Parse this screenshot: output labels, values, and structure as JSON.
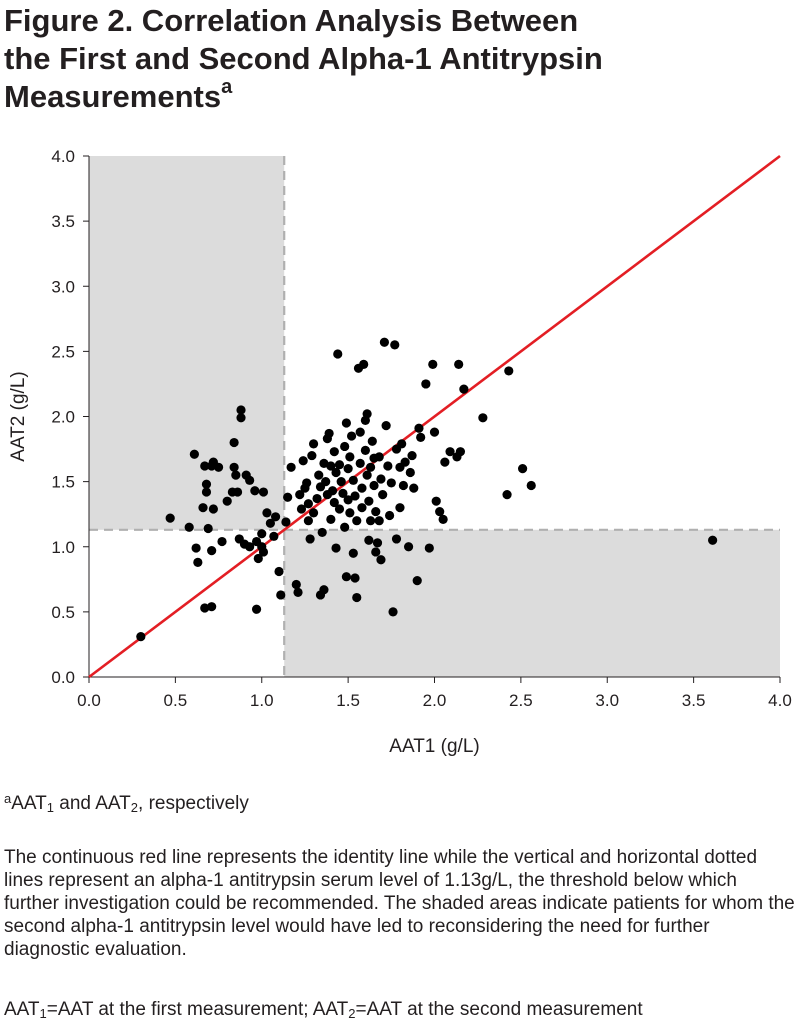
{
  "title": {
    "line1": "Figure 2. Correlation Analysis Between",
    "line2": "the First and Second Alpha-1 Antitrypsin",
    "line3": "Measurements",
    "sup": "a"
  },
  "chart_data": {
    "type": "scatter",
    "xlabel": "AAT1 (g/L)",
    "ylabel": "AAT2 (g/L)",
    "xlim": [
      0,
      4.0
    ],
    "ylim": [
      0,
      4.0
    ],
    "x_ticks": [
      "0.0",
      "0.5",
      "1.0",
      "1.5",
      "2.0",
      "2.5",
      "3.0",
      "3.5",
      "4.0"
    ],
    "y_ticks": [
      "0.0",
      "0.5",
      "1.0",
      "1.5",
      "2.0",
      "2.5",
      "3.0",
      "3.5",
      "4.0"
    ],
    "threshold": 1.13,
    "identity_line": [
      [
        0,
        0
      ],
      [
        4.0,
        4.0
      ]
    ],
    "shaded_regions": [
      {
        "x": [
          0,
          1.13
        ],
        "y": [
          1.13,
          4.0
        ]
      },
      {
        "x": [
          1.13,
          4.0
        ],
        "y": [
          0,
          1.13
        ]
      }
    ],
    "colors": {
      "identity_line": "#e31e24",
      "shade": "#dcdcdc",
      "threshold_line": "#b0b0b0",
      "points": "#000000"
    },
    "grid": false,
    "points": [
      [
        0.3,
        0.31
      ],
      [
        0.47,
        1.22
      ],
      [
        0.58,
        1.15
      ],
      [
        0.61,
        1.71
      ],
      [
        0.62,
        0.99
      ],
      [
        0.63,
        0.88
      ],
      [
        0.66,
        1.3
      ],
      [
        0.67,
        1.62
      ],
      [
        0.68,
        1.48
      ],
      [
        0.68,
        1.42
      ],
      [
        0.67,
        0.53
      ],
      [
        0.69,
        1.14
      ],
      [
        0.71,
        1.62
      ],
      [
        0.72,
        1.29
      ],
      [
        0.71,
        0.54
      ],
      [
        0.71,
        0.97
      ],
      [
        0.72,
        1.65
      ],
      [
        0.75,
        1.61
      ],
      [
        0.77,
        1.04
      ],
      [
        0.8,
        1.35
      ],
      [
        0.84,
        1.61
      ],
      [
        0.83,
        1.42
      ],
      [
        0.84,
        1.8
      ],
      [
        0.85,
        1.55
      ],
      [
        0.86,
        1.42
      ],
      [
        0.87,
        1.06
      ],
      [
        0.88,
        2.05
      ],
      [
        0.88,
        1.99
      ],
      [
        0.9,
        1.02
      ],
      [
        0.91,
        1.55
      ],
      [
        0.93,
        1.51
      ],
      [
        0.93,
        1.0
      ],
      [
        0.96,
        1.43
      ],
      [
        0.97,
        1.04
      ],
      [
        0.97,
        0.52
      ],
      [
        0.98,
        0.91
      ],
      [
        1.0,
        1.0
      ],
      [
        1.01,
        1.42
      ],
      [
        1.0,
        1.1
      ],
      [
        1.01,
        0.96
      ],
      [
        1.03,
        1.26
      ],
      [
        1.05,
        1.18
      ],
      [
        1.07,
        1.08
      ],
      [
        1.08,
        1.23
      ],
      [
        1.1,
        0.81
      ],
      [
        1.11,
        0.63
      ],
      [
        1.14,
        1.19
      ],
      [
        1.15,
        1.38
      ],
      [
        1.17,
        1.61
      ],
      [
        1.2,
        0.71
      ],
      [
        1.21,
        0.65
      ],
      [
        1.22,
        1.4
      ],
      [
        1.23,
        1.29
      ],
      [
        1.25,
        1.45
      ],
      [
        1.24,
        1.66
      ],
      [
        1.26,
        1.49
      ],
      [
        1.27,
        1.33
      ],
      [
        1.27,
        1.2
      ],
      [
        1.28,
        1.06
      ],
      [
        1.29,
        1.7
      ],
      [
        1.3,
        1.79
      ],
      [
        1.3,
        1.26
      ],
      [
        1.32,
        1.37
      ],
      [
        1.33,
        1.55
      ],
      [
        1.34,
        1.46
      ],
      [
        1.34,
        0.63
      ],
      [
        1.35,
        1.11
      ],
      [
        1.36,
        0.67
      ],
      [
        1.36,
        1.64
      ],
      [
        1.37,
        1.5
      ],
      [
        1.38,
        1.83
      ],
      [
        1.38,
        1.4
      ],
      [
        1.39,
        1.87
      ],
      [
        1.4,
        1.21
      ],
      [
        1.4,
        1.62
      ],
      [
        1.41,
        1.43
      ],
      [
        1.42,
        1.34
      ],
      [
        1.42,
        1.73
      ],
      [
        1.43,
        1.57
      ],
      [
        1.43,
        0.99
      ],
      [
        1.44,
        2.48
      ],
      [
        1.45,
        1.29
      ],
      [
        1.45,
        1.63
      ],
      [
        1.46,
        1.5
      ],
      [
        1.47,
        1.41
      ],
      [
        1.48,
        1.77
      ],
      [
        1.48,
        1.15
      ],
      [
        1.49,
        0.77
      ],
      [
        1.49,
        1.95
      ],
      [
        1.5,
        1.6
      ],
      [
        1.5,
        1.36
      ],
      [
        1.51,
        1.26
      ],
      [
        1.51,
        1.69
      ],
      [
        1.52,
        1.85
      ],
      [
        1.53,
        0.95
      ],
      [
        1.53,
        1.51
      ],
      [
        1.54,
        1.39
      ],
      [
        1.54,
        0.76
      ],
      [
        1.55,
        1.2
      ],
      [
        1.55,
        0.61
      ],
      [
        1.56,
        2.37
      ],
      [
        1.57,
        1.88
      ],
      [
        1.57,
        1.64
      ],
      [
        1.58,
        1.45
      ],
      [
        1.58,
        1.3
      ],
      [
        1.59,
        2.4
      ],
      [
        1.6,
        1.97
      ],
      [
        1.6,
        1.74
      ],
      [
        1.61,
        2.02
      ],
      [
        1.61,
        1.55
      ],
      [
        1.62,
        1.35
      ],
      [
        1.62,
        1.05
      ],
      [
        1.63,
        1.61
      ],
      [
        1.63,
        1.2
      ],
      [
        1.64,
        1.81
      ],
      [
        1.65,
        1.68
      ],
      [
        1.65,
        1.47
      ],
      [
        1.66,
        1.27
      ],
      [
        1.66,
        0.96
      ],
      [
        1.67,
        1.03
      ],
      [
        1.68,
        1.69
      ],
      [
        1.68,
        1.2
      ],
      [
        1.69,
        1.52
      ],
      [
        1.69,
        0.9
      ],
      [
        1.7,
        1.4
      ],
      [
        1.71,
        2.57
      ],
      [
        1.72,
        1.93
      ],
      [
        1.73,
        1.62
      ],
      [
        1.74,
        1.24
      ],
      [
        1.75,
        1.49
      ],
      [
        1.76,
        0.5
      ],
      [
        1.77,
        2.55
      ],
      [
        1.78,
        1.75
      ],
      [
        1.78,
        1.06
      ],
      [
        1.8,
        1.61
      ],
      [
        1.8,
        1.3
      ],
      [
        1.81,
        1.79
      ],
      [
        1.82,
        1.47
      ],
      [
        1.83,
        1.65
      ],
      [
        1.85,
        1.0
      ],
      [
        1.86,
        1.57
      ],
      [
        1.87,
        1.7
      ],
      [
        1.88,
        1.45
      ],
      [
        1.9,
        0.74
      ],
      [
        1.91,
        1.91
      ],
      [
        1.92,
        1.84
      ],
      [
        1.95,
        2.25
      ],
      [
        1.97,
        0.99
      ],
      [
        1.99,
        2.4
      ],
      [
        2.0,
        1.88
      ],
      [
        2.01,
        1.35
      ],
      [
        2.03,
        1.27
      ],
      [
        2.05,
        1.21
      ],
      [
        2.06,
        1.65
      ],
      [
        2.09,
        1.73
      ],
      [
        2.13,
        1.69
      ],
      [
        2.14,
        2.4
      ],
      [
        2.15,
        1.73
      ],
      [
        2.17,
        2.21
      ],
      [
        2.28,
        1.99
      ],
      [
        2.42,
        1.4
      ],
      [
        2.43,
        2.35
      ],
      [
        2.51,
        1.6
      ],
      [
        2.56,
        1.47
      ],
      [
        3.61,
        1.05
      ]
    ]
  },
  "notes": {
    "footnote": {
      "sup": "a",
      "t1": "AAT",
      "s1": "1",
      "t2": " and AAT",
      "s2": "2",
      "t3": ", respectively"
    },
    "caption": "The continuous red line represents the identity line while the vertical and horizontal dotted lines represent an alpha-1 antitrypsin serum level of 1.13g/L, the threshold below which further investigation could be recommended. The shaded areas indicate patients for whom the second alpha-1 antitrypsin level would have led to reconsidering the need for further diagnostic evaluation.",
    "abbrev": {
      "t1": "AAT",
      "s1": "1",
      "t2": "=AAT at the first measurement; AAT",
      "s2": "2",
      "t3": "=AAT at the second measurement"
    }
  }
}
